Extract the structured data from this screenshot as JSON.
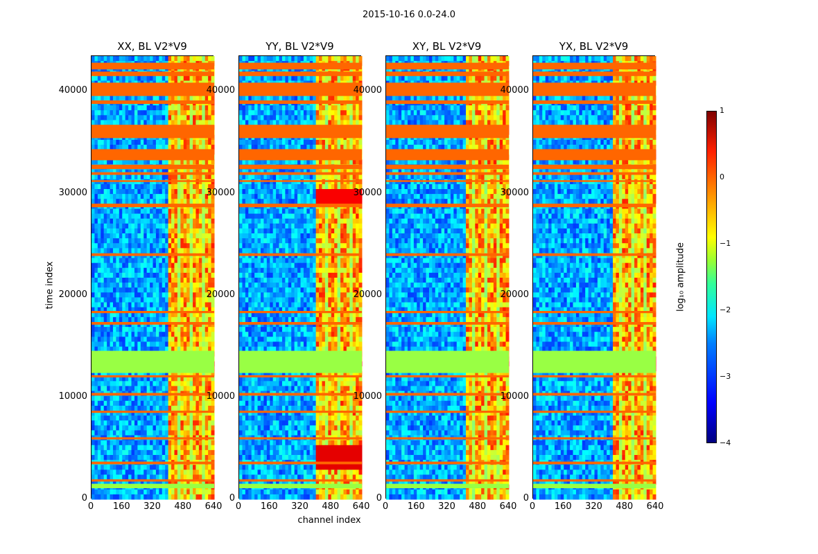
{
  "figure_title": "2015-10-16 0.0-24.0",
  "colorbar": {
    "label": "log₁₀ amplitude",
    "ticks": [
      "1",
      "0",
      "−1",
      "−2",
      "−3",
      "−4"
    ]
  },
  "chart_data": [
    {
      "type": "heatmap",
      "title": "XX, BL V2*V9",
      "xlabel": "",
      "ylabel": "time index",
      "xlim": [
        0,
        640
      ],
      "ylim": [
        0,
        43500
      ],
      "xticks": [
        "0",
        "160",
        "320",
        "480",
        "640"
      ],
      "yticks": [
        "0",
        "10000",
        "20000",
        "30000",
        "40000"
      ],
      "colormap": "jet",
      "color_range": [
        -4,
        1
      ]
    },
    {
      "type": "heatmap",
      "title": "YY, BL V2*V9",
      "xlabel": "channel index",
      "ylabel": "",
      "xlim": [
        0,
        640
      ],
      "ylim": [
        0,
        43500
      ],
      "xticks": [
        "0",
        "160",
        "320",
        "480",
        "640"
      ],
      "yticks": [
        "0",
        "10000",
        "20000",
        "30000",
        "40000"
      ],
      "colormap": "jet",
      "color_range": [
        -4,
        1
      ]
    },
    {
      "type": "heatmap",
      "title": "XY, BL V2*V9",
      "xlabel": "",
      "ylabel": "",
      "xlim": [
        0,
        640
      ],
      "ylim": [
        0,
        43500
      ],
      "xticks": [
        "0",
        "160",
        "320",
        "480",
        "640"
      ],
      "yticks": [
        "0",
        "10000",
        "20000",
        "30000",
        "40000"
      ],
      "colormap": "jet",
      "color_range": [
        -4,
        1
      ]
    },
    {
      "type": "heatmap",
      "title": "YX, BL V2*V9",
      "xlabel": "",
      "ylabel": "",
      "xlim": [
        0,
        640
      ],
      "ylim": [
        0,
        43500
      ],
      "xticks": [
        "0",
        "160",
        "320",
        "480",
        "640"
      ],
      "yticks": [
        "0",
        "10000",
        "20000",
        "30000",
        "40000"
      ],
      "colormap": "jet",
      "color_range": [
        -4,
        1
      ]
    }
  ]
}
